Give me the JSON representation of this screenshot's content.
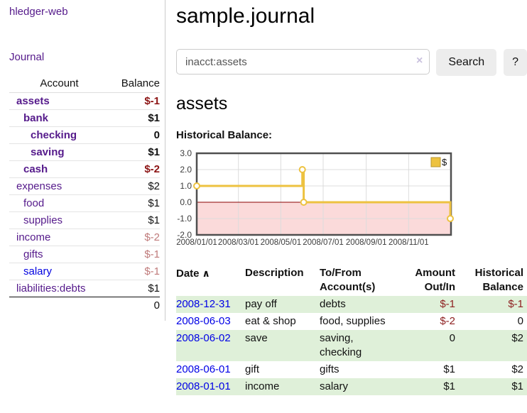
{
  "sidebar": {
    "brand": "hledger-web",
    "journal_link": "Journal",
    "accounts": {
      "col_account": "Account",
      "col_balance": "Balance",
      "rows": [
        {
          "account": "assets",
          "balance": "$-1",
          "indent": 1,
          "bold": true,
          "balance_class": "neg-strong"
        },
        {
          "account": "bank",
          "balance": "$1",
          "indent": 2,
          "bold": true,
          "balance_class": ""
        },
        {
          "account": "checking",
          "balance": "0",
          "indent": 3,
          "bold": true,
          "balance_class": ""
        },
        {
          "account": "saving",
          "balance": "$1",
          "indent": 3,
          "bold": true,
          "balance_class": ""
        },
        {
          "account": "cash",
          "balance": "$-2",
          "indent": 2,
          "bold": true,
          "balance_class": "neg-strong"
        },
        {
          "account": "expenses",
          "balance": "$2",
          "indent": 1,
          "bold": false,
          "balance_class": ""
        },
        {
          "account": "food",
          "balance": "$1",
          "indent": 2,
          "bold": false,
          "balance_class": ""
        },
        {
          "account": "supplies",
          "balance": "$1",
          "indent": 2,
          "bold": false,
          "balance_class": ""
        },
        {
          "account": "income",
          "balance": "$-2",
          "indent": 1,
          "bold": false,
          "balance_class": "neg-soft"
        },
        {
          "account": "gifts",
          "balance": "$-1",
          "indent": 2,
          "bold": false,
          "balance_class": "neg-soft"
        },
        {
          "account": "salary",
          "balance": "$-1",
          "indent": 2,
          "bold": false,
          "balance_class": "neg-soft",
          "color": "blue"
        },
        {
          "account": "liabilities:debts",
          "balance": "$1",
          "indent": 1,
          "bold": false,
          "balance_class": ""
        }
      ],
      "total": "0"
    }
  },
  "main": {
    "title": "sample.journal",
    "search": {
      "value": "inacct:assets",
      "clear_icon": "×",
      "button_label": "Search",
      "help_label": "?"
    },
    "account_heading": "assets",
    "chart_label": "Historical Balance:"
  },
  "chart_data": {
    "type": "line",
    "step": true,
    "title": "Historical Balance",
    "series": [
      {
        "name": "$",
        "color": "#EDC240",
        "points": [
          [
            "2008-01-01",
            1.0
          ],
          [
            "2008-06-01",
            2.0
          ],
          [
            "2008-06-03",
            0.0
          ],
          [
            "2008-12-31",
            -1.0
          ]
        ]
      }
    ],
    "ylim": [
      -2.0,
      3.0
    ],
    "yticks": [
      3.0,
      2.0,
      1.0,
      0.0,
      -1.0,
      -2.0
    ],
    "xticks": [
      "2008/01/01",
      "2008/03/01",
      "2008/05/01",
      "2008/07/01",
      "2008/09/01",
      "2008/11/01"
    ],
    "xrange": [
      "2008-01-01",
      "2009-01-01"
    ],
    "legend": "$",
    "legend_position": "top-right",
    "grid": true,
    "negative_region_color": "#fbdada",
    "zero_line_color": "#8b0000"
  },
  "register": {
    "headers": [
      {
        "label": "Date",
        "sort_icon": "∧",
        "align": "left"
      },
      {
        "label": "Description",
        "align": "left"
      },
      {
        "label": "To/From Account(s)",
        "align": "left"
      },
      {
        "label": "Amount Out/In",
        "align": "right"
      },
      {
        "label": "Historical Balance",
        "align": "right"
      }
    ],
    "rows": [
      {
        "date": "2008-12-31",
        "description": "pay off",
        "accounts": "debts",
        "amount": "$-1",
        "amount_neg": true,
        "balance": "$-1",
        "balance_neg": true,
        "highlight": true
      },
      {
        "date": "2008-06-03",
        "description": "eat & shop",
        "accounts": "food, supplies",
        "amount": "$-2",
        "amount_neg": true,
        "balance": "0",
        "balance_neg": false,
        "highlight": false
      },
      {
        "date": "2008-06-02",
        "description": "save",
        "accounts": "saving, checking",
        "amount": "0",
        "amount_neg": false,
        "balance": "$2",
        "balance_neg": false,
        "highlight": true
      },
      {
        "date": "2008-06-01",
        "description": "gift",
        "accounts": "gifts",
        "amount": "$1",
        "amount_neg": false,
        "balance": "$2",
        "balance_neg": false,
        "highlight": false
      },
      {
        "date": "2008-01-01",
        "description": "income",
        "accounts": "salary",
        "amount": "$1",
        "amount_neg": false,
        "balance": "$1",
        "balance_neg": false,
        "highlight": true
      }
    ]
  }
}
